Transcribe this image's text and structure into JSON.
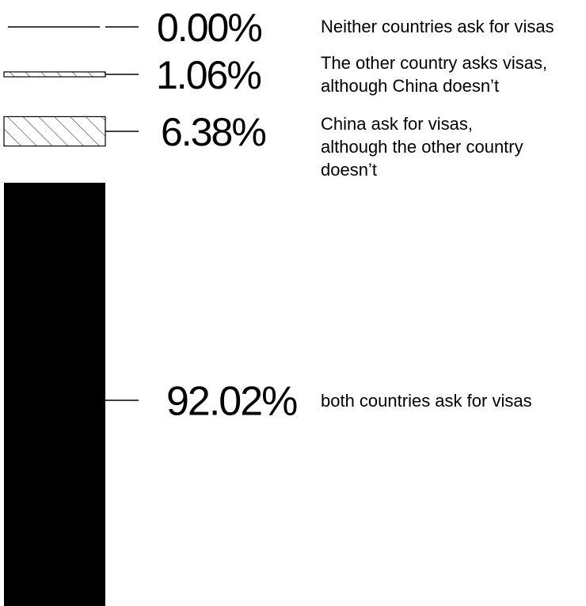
{
  "chart_data": {
    "type": "bar",
    "title": "",
    "unit": "%",
    "bar_style": "stacked-single-column",
    "categories": [
      "Neither countries ask for visas",
      "The other country asks visas, although China doesn’t",
      "China ask for visas, although the other country doesn’t",
      "both countries ask for visas"
    ],
    "values": [
      0.0,
      1.06,
      6.38,
      92.02
    ],
    "value_labels": [
      "0.00%",
      "1.06%",
      "6.38%",
      "92.02%"
    ],
    "label_lines": [
      [
        "Neither countries ask for visas"
      ],
      [
        "The other country asks visas,",
        "although China doesn’t"
      ],
      [
        "China ask for visas,",
        "although the other country",
        "doesn’t"
      ],
      [
        "both countries ask for visas"
      ]
    ],
    "fills": [
      "none",
      "hatch",
      "hatch",
      "#000000"
    ]
  }
}
